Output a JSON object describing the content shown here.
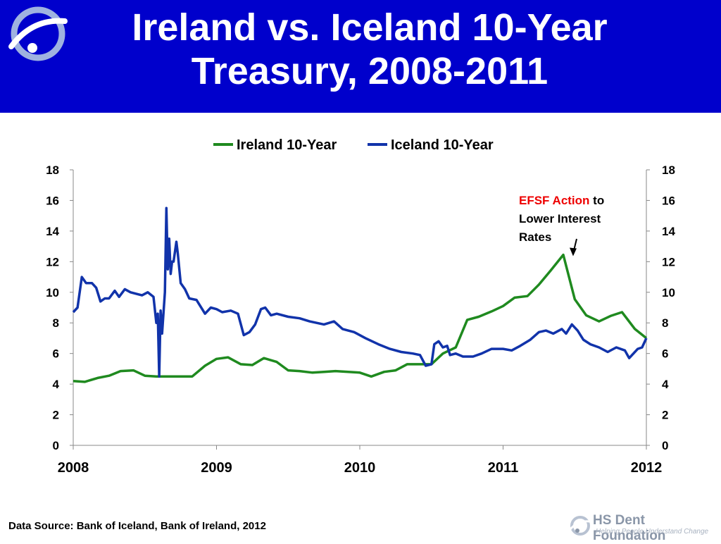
{
  "header": {
    "title_line1": "Ireland vs. Iceland 10-Year",
    "title_line2": "Treasury, 2008-2011"
  },
  "annotation": {
    "highlight": "EFSF Action",
    "rest_line1": " to",
    "line2": "Lower Interest",
    "line3": "Rates"
  },
  "footer": {
    "source": "Data Source: Bank of Iceland, Bank of Ireland, 2012",
    "logo_name": "HS Dent Foundation",
    "logo_tagline": "Helping People Understand Change"
  },
  "colors": {
    "header_bg": "#0000cc",
    "ireland": "#1f8a1f",
    "iceland": "#1133aa",
    "annotation_highlight": "#ee0000"
  },
  "icons": {
    "logo": "hs-dent-swirl-logo"
  },
  "chart_data": {
    "type": "line",
    "title": "",
    "xlabel": "",
    "ylabel": "",
    "ylim": [
      0,
      18
    ],
    "y_ticks": [
      "0",
      "2",
      "4",
      "6",
      "8",
      "10",
      "12",
      "14",
      "16",
      "18"
    ],
    "x_ticks": [
      "2008",
      "2009",
      "2010",
      "2011",
      "2012"
    ],
    "x_tick_values": [
      2008,
      2009,
      2010,
      2011,
      2012
    ],
    "xlim": [
      2008,
      2012
    ],
    "grid": false,
    "legend": "top-center",
    "dual_y_axis": true,
    "series": [
      {
        "name": "Ireland 10-Year",
        "color": "#1f8a1f",
        "points": [
          [
            2008.0,
            4.2
          ],
          [
            2008.08,
            4.15
          ],
          [
            2008.17,
            4.4
          ],
          [
            2008.25,
            4.55
          ],
          [
            2008.33,
            4.85
          ],
          [
            2008.42,
            4.9
          ],
          [
            2008.5,
            4.55
          ],
          [
            2008.58,
            4.5
          ],
          [
            2008.67,
            4.5
          ],
          [
            2008.75,
            4.5
          ],
          [
            2008.83,
            4.5
          ],
          [
            2008.92,
            5.2
          ],
          [
            2009.0,
            5.65
          ],
          [
            2009.08,
            5.75
          ],
          [
            2009.17,
            5.3
          ],
          [
            2009.25,
            5.25
          ],
          [
            2009.33,
            5.7
          ],
          [
            2009.42,
            5.45
          ],
          [
            2009.5,
            4.9
          ],
          [
            2009.58,
            4.85
          ],
          [
            2009.67,
            4.75
          ],
          [
            2009.75,
            4.8
          ],
          [
            2009.83,
            4.85
          ],
          [
            2009.92,
            4.8
          ],
          [
            2010.0,
            4.75
          ],
          [
            2010.08,
            4.5
          ],
          [
            2010.17,
            4.8
          ],
          [
            2010.25,
            4.9
          ],
          [
            2010.33,
            5.3
          ],
          [
            2010.42,
            5.3
          ],
          [
            2010.5,
            5.3
          ],
          [
            2010.58,
            6.0
          ],
          [
            2010.67,
            6.4
          ],
          [
            2010.75,
            8.2
          ],
          [
            2010.83,
            8.4
          ],
          [
            2010.92,
            8.75
          ],
          [
            2011.0,
            9.1
          ],
          [
            2011.08,
            9.65
          ],
          [
            2011.17,
            9.75
          ],
          [
            2011.25,
            10.5
          ],
          [
            2011.33,
            11.4
          ],
          [
            2011.42,
            12.45
          ],
          [
            2011.5,
            9.55
          ],
          [
            2011.58,
            8.5
          ],
          [
            2011.67,
            8.1
          ],
          [
            2011.75,
            8.45
          ],
          [
            2011.83,
            8.7
          ],
          [
            2011.92,
            7.6
          ],
          [
            2012.0,
            7.0
          ]
        ]
      },
      {
        "name": "Iceland 10-Year",
        "color": "#1133aa",
        "points": [
          [
            2008.0,
            8.7
          ],
          [
            2008.03,
            9.0
          ],
          [
            2008.06,
            11.0
          ],
          [
            2008.09,
            10.6
          ],
          [
            2008.13,
            10.6
          ],
          [
            2008.16,
            10.3
          ],
          [
            2008.19,
            9.4
          ],
          [
            2008.22,
            9.6
          ],
          [
            2008.25,
            9.6
          ],
          [
            2008.29,
            10.1
          ],
          [
            2008.32,
            9.7
          ],
          [
            2008.36,
            10.2
          ],
          [
            2008.4,
            10.0
          ],
          [
            2008.44,
            9.9
          ],
          [
            2008.48,
            9.8
          ],
          [
            2008.52,
            10.0
          ],
          [
            2008.56,
            9.7
          ],
          [
            2008.58,
            8.0
          ],
          [
            2008.59,
            8.6
          ],
          [
            2008.6,
            4.5
          ],
          [
            2008.61,
            8.8
          ],
          [
            2008.62,
            7.3
          ],
          [
            2008.64,
            10.0
          ],
          [
            2008.65,
            15.5
          ],
          [
            2008.66,
            11.5
          ],
          [
            2008.67,
            13.5
          ],
          [
            2008.68,
            11.2
          ],
          [
            2008.69,
            12.0
          ],
          [
            2008.7,
            12.0
          ],
          [
            2008.72,
            13.3
          ],
          [
            2008.73,
            12.5
          ],
          [
            2008.75,
            10.6
          ],
          [
            2008.78,
            10.2
          ],
          [
            2008.81,
            9.6
          ],
          [
            2008.86,
            9.5
          ],
          [
            2008.92,
            8.6
          ],
          [
            2008.96,
            9.0
          ],
          [
            2009.0,
            8.9
          ],
          [
            2009.04,
            8.7
          ],
          [
            2009.1,
            8.8
          ],
          [
            2009.15,
            8.6
          ],
          [
            2009.19,
            7.2
          ],
          [
            2009.23,
            7.4
          ],
          [
            2009.27,
            7.9
          ],
          [
            2009.31,
            8.9
          ],
          [
            2009.34,
            9.0
          ],
          [
            2009.38,
            8.5
          ],
          [
            2009.42,
            8.6
          ],
          [
            2009.5,
            8.4
          ],
          [
            2009.58,
            8.3
          ],
          [
            2009.65,
            8.1
          ],
          [
            2009.75,
            7.9
          ],
          [
            2009.82,
            8.1
          ],
          [
            2009.88,
            7.6
          ],
          [
            2009.96,
            7.4
          ],
          [
            2010.04,
            7.0
          ],
          [
            2010.13,
            6.6
          ],
          [
            2010.21,
            6.3
          ],
          [
            2010.29,
            6.1
          ],
          [
            2010.37,
            6.0
          ],
          [
            2010.42,
            5.9
          ],
          [
            2010.46,
            5.2
          ],
          [
            2010.5,
            5.3
          ],
          [
            2010.52,
            6.6
          ],
          [
            2010.55,
            6.8
          ],
          [
            2010.58,
            6.4
          ],
          [
            2010.61,
            6.5
          ],
          [
            2010.63,
            5.9
          ],
          [
            2010.67,
            6.0
          ],
          [
            2010.72,
            5.8
          ],
          [
            2010.79,
            5.8
          ],
          [
            2010.85,
            6.0
          ],
          [
            2010.92,
            6.3
          ],
          [
            2011.0,
            6.3
          ],
          [
            2011.06,
            6.2
          ],
          [
            2011.12,
            6.5
          ],
          [
            2011.19,
            6.9
          ],
          [
            2011.25,
            7.4
          ],
          [
            2011.3,
            7.5
          ],
          [
            2011.35,
            7.3
          ],
          [
            2011.41,
            7.6
          ],
          [
            2011.44,
            7.3
          ],
          [
            2011.48,
            7.9
          ],
          [
            2011.52,
            7.5
          ],
          [
            2011.56,
            6.9
          ],
          [
            2011.61,
            6.6
          ],
          [
            2011.67,
            6.4
          ],
          [
            2011.73,
            6.1
          ],
          [
            2011.79,
            6.4
          ],
          [
            2011.85,
            6.2
          ],
          [
            2011.88,
            5.7
          ],
          [
            2011.94,
            6.3
          ],
          [
            2011.97,
            6.4
          ],
          [
            2012.0,
            7.0
          ]
        ]
      }
    ]
  }
}
